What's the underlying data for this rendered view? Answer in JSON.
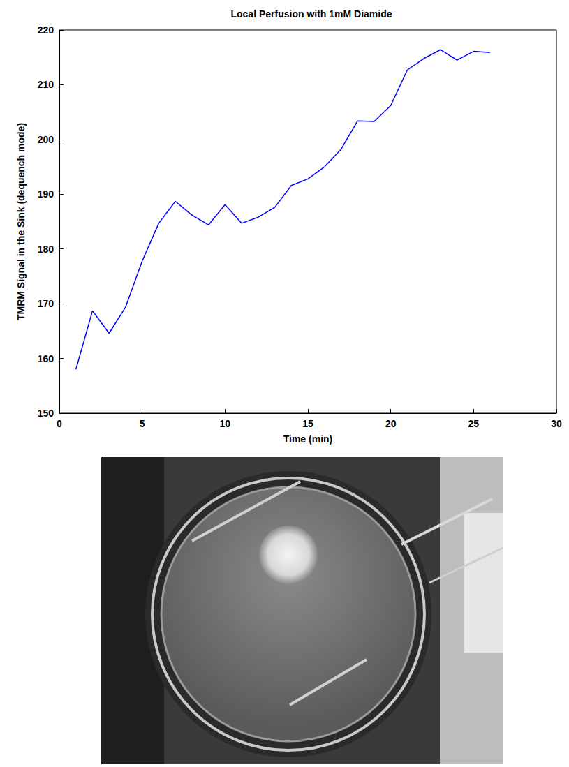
{
  "chart_data": {
    "type": "line",
    "title": "Local Perfusion with 1mM Diamide",
    "x_label": "Time (min)",
    "y_label": "TMRM Signal in the Sink (dequench mode)",
    "x": [
      1,
      2,
      3,
      4,
      5,
      6,
      7,
      8,
      9,
      10,
      11,
      12,
      13,
      14,
      15,
      16,
      17,
      18,
      19,
      20,
      21,
      22,
      23,
      24,
      25,
      26
    ],
    "values": [
      158.0,
      168.7,
      164.6,
      169.4,
      177.8,
      184.7,
      188.7,
      186.2,
      184.4,
      188.1,
      184.7,
      185.8,
      187.6,
      191.6,
      192.8,
      195.0,
      198.2,
      203.4,
      203.3,
      206.2,
      212.7,
      214.8,
      216.4,
      214.5,
      216.1,
      215.9
    ],
    "color": "#0000ff",
    "xlim": [
      0,
      30
    ],
    "xticks": [
      0,
      5,
      10,
      15,
      20,
      25,
      30
    ],
    "ylim": [
      150,
      220
    ],
    "yticks": [
      150,
      160,
      170,
      180,
      190,
      200,
      210,
      220
    ],
    "grid": false
  }
}
